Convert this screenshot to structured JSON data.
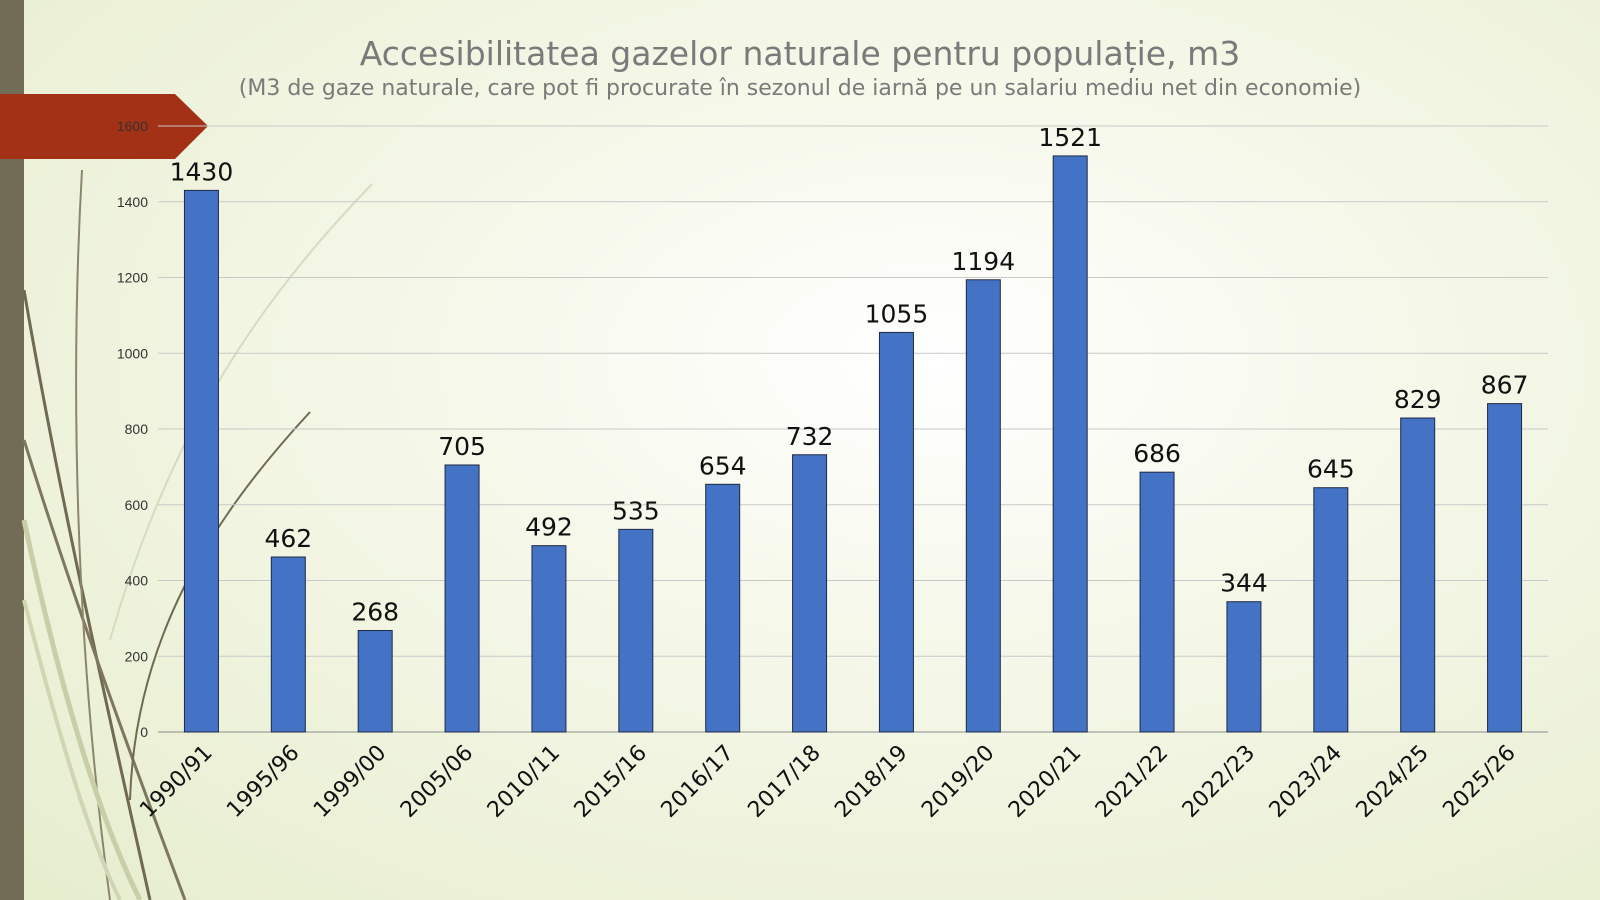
{
  "slide": {
    "accent_color": "#a33116",
    "strip_color": "#726b55",
    "bar_color": "#4472c4"
  },
  "chart_data": {
    "type": "bar",
    "title": "Accesibilitatea gazelor naturale pentru populație, m3",
    "subtitle": "(M3 de gaze naturale, care pot fi procurate în sezonul de iarnă pe un salariu mediu net din economie)",
    "categories": [
      "1990/91",
      "1995/96",
      "1999/00",
      "2005/06",
      "2010/11",
      "2015/16",
      "2016/17",
      "2017/18",
      "2018/19",
      "2019/20",
      "2020/21",
      "2021/22",
      "2022/23",
      "2023/24",
      "2024/25",
      "2025/26"
    ],
    "values": [
      1430,
      462,
      268,
      705,
      492,
      535,
      654,
      732,
      1055,
      1194,
      1521,
      686,
      344,
      645,
      829,
      867
    ],
    "yticks": [
      0,
      200,
      400,
      600,
      800,
      1000,
      1200,
      1400,
      1600
    ],
    "ylim": [
      0,
      1600
    ],
    "grid": true,
    "legend": "none",
    "data_labels": true
  }
}
